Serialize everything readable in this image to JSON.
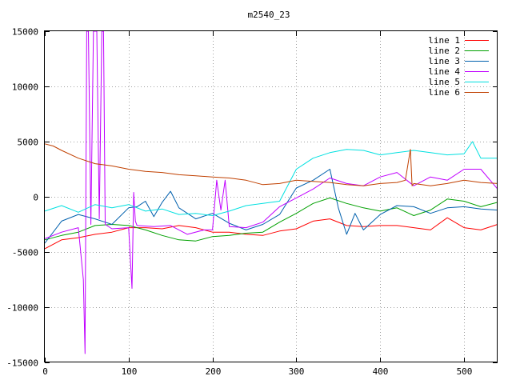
{
  "chart_data": {
    "type": "line",
    "title": "m2540_23",
    "xlabel": "",
    "ylabel": "",
    "xlim": [
      0,
      540
    ],
    "ylim": [
      -15000,
      15000
    ],
    "xticks": [
      0,
      100,
      200,
      300,
      400,
      500
    ],
    "yticks": [
      -15000,
      -10000,
      -5000,
      0,
      5000,
      10000,
      15000
    ],
    "grid": true,
    "legend_position": "top-right",
    "series": [
      {
        "name": "line 1",
        "color": "#ff0000",
        "x": [
          0,
          20,
          40,
          60,
          80,
          100,
          120,
          140,
          160,
          180,
          200,
          220,
          240,
          260,
          280,
          300,
          320,
          340,
          360,
          380,
          400,
          420,
          440,
          460,
          480,
          500,
          520,
          540
        ],
        "y": [
          -4700,
          -3900,
          -3700,
          -3400,
          -3200,
          -2800,
          -2800,
          -2900,
          -2600,
          -2800,
          -3200,
          -3200,
          -3400,
          -3500,
          -3100,
          -2900,
          -2200,
          -2000,
          -2600,
          -2700,
          -2600,
          -2600,
          -2800,
          -3000,
          -1900,
          -2800,
          -3000,
          -2500
        ]
      },
      {
        "name": "line 2",
        "color": "#00a000",
        "x": [
          0,
          20,
          40,
          60,
          80,
          100,
          120,
          140,
          160,
          180,
          200,
          220,
          240,
          260,
          280,
          300,
          320,
          340,
          360,
          380,
          400,
          420,
          440,
          460,
          480,
          500,
          520,
          540
        ],
        "y": [
          -3900,
          -3500,
          -3200,
          -2600,
          -2500,
          -2600,
          -3000,
          -3500,
          -3900,
          -4000,
          -3600,
          -3500,
          -3300,
          -3200,
          -2300,
          -1500,
          -600,
          -100,
          -600,
          -1000,
          -1300,
          -1000,
          -1700,
          -1200,
          -200,
          -400,
          -900,
          -500
        ]
      },
      {
        "name": "line 3",
        "color": "#0060ad",
        "x": [
          0,
          20,
          40,
          60,
          80,
          100,
          110,
          120,
          130,
          140,
          150,
          160,
          180,
          200,
          220,
          240,
          260,
          280,
          300,
          320,
          340,
          350,
          360,
          370,
          380,
          400,
          420,
          440,
          460,
          480,
          500,
          520,
          540
        ],
        "y": [
          -4200,
          -2200,
          -1600,
          -2000,
          -2500,
          -1000,
          -900,
          -400,
          -1800,
          -500,
          500,
          -1000,
          -2000,
          -1500,
          -2400,
          -3000,
          -2500,
          -1600,
          800,
          1500,
          2500,
          -1000,
          -3400,
          -1500,
          -3000,
          -1600,
          -800,
          -900,
          -1500,
          -1000,
          -900,
          -1100,
          -1200
        ]
      },
      {
        "name": "line 4",
        "color": "#c000ff",
        "x": [
          0,
          20,
          40,
          46,
          48,
          50,
          52,
          55,
          58,
          60,
          62,
          65,
          68,
          70,
          72,
          80,
          100,
          104,
          106,
          108,
          110,
          130,
          150,
          170,
          190,
          200,
          205,
          210,
          215,
          220,
          240,
          260,
          280,
          300,
          320,
          340,
          360,
          380,
          400,
          420,
          440,
          460,
          480,
          500,
          520,
          540
        ],
        "y": [
          -3800,
          -3200,
          -2800,
          -7500,
          -14200,
          15000,
          15000,
          -2500,
          15000,
          15000,
          15000,
          -2000,
          15000,
          15000,
          -2500,
          -2900,
          -2800,
          -8300,
          400,
          -2200,
          -2600,
          -2700,
          -2600,
          -3400,
          -3000,
          -3000,
          1500,
          -1200,
          1500,
          -2700,
          -2800,
          -2300,
          -900,
          -100,
          700,
          1700,
          1200,
          1000,
          1800,
          2200,
          1000,
          1800,
          1500,
          2500,
          2500,
          700
        ]
      },
      {
        "name": "line 5",
        "color": "#00e0e0",
        "x": [
          0,
          20,
          40,
          60,
          80,
          100,
          120,
          140,
          160,
          180,
          200,
          220,
          240,
          260,
          280,
          300,
          320,
          340,
          360,
          380,
          400,
          420,
          440,
          460,
          480,
          500,
          510,
          520,
          540
        ],
        "y": [
          -1300,
          -800,
          -1400,
          -700,
          -1000,
          -700,
          -1300,
          -1100,
          -1600,
          -1500,
          -1700,
          -1300,
          -800,
          -600,
          -400,
          2500,
          3500,
          4000,
          4300,
          4200,
          3800,
          4000,
          4200,
          4000,
          3800,
          3900,
          5000,
          3500,
          3500
        ]
      },
      {
        "name": "line 6",
        "color": "#c04000",
        "x": [
          0,
          10,
          20,
          40,
          60,
          80,
          100,
          120,
          140,
          160,
          180,
          200,
          220,
          240,
          260,
          280,
          300,
          320,
          340,
          360,
          380,
          400,
          420,
          430,
          436,
          438,
          440,
          460,
          480,
          500,
          520,
          540
        ],
        "y": [
          4800,
          4600,
          4200,
          3500,
          3000,
          2800,
          2500,
          2300,
          2200,
          2000,
          1900,
          1800,
          1700,
          1500,
          1100,
          1200,
          1500,
          1400,
          1300,
          1100,
          1000,
          1200,
          1300,
          1500,
          4300,
          1000,
          1200,
          1000,
          1200,
          1500,
          1300,
          1200
        ]
      }
    ]
  }
}
